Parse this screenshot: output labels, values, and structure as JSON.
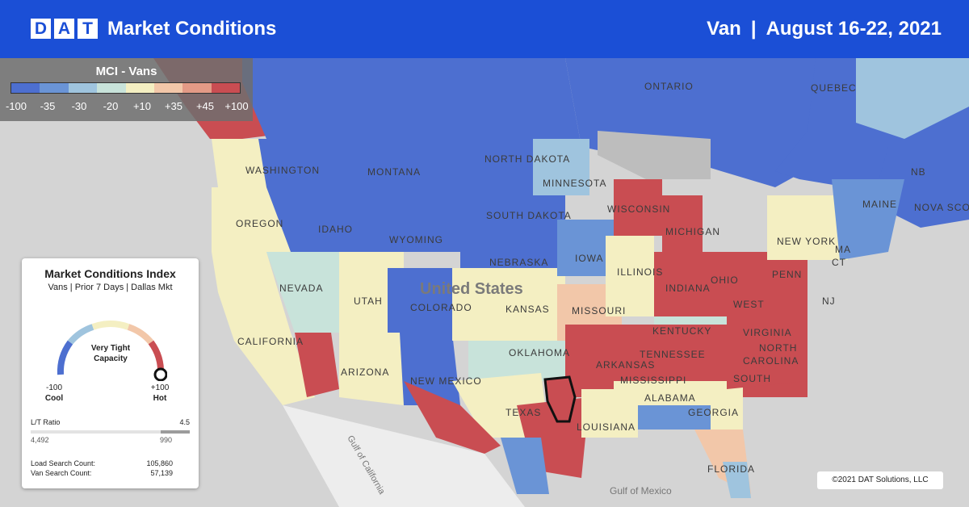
{
  "header": {
    "logo_letters": [
      "D",
      "A",
      "T"
    ],
    "title": "Market Conditions",
    "equipment": "Van",
    "separator": "|",
    "date_range": "August 16-22, 2021"
  },
  "legend": {
    "title": "MCI - Vans",
    "ticks": [
      "-100",
      "-35",
      "-30",
      "-20",
      "+10",
      "+35",
      "+45",
      "+100"
    ],
    "colors": [
      "#4d6fd0",
      "#6a94d6",
      "#9fc4de",
      "#c8e3da",
      "#f4efc2",
      "#f2c7a9",
      "#e49a86",
      "#c94d52"
    ]
  },
  "card": {
    "title": "Market Conditions Index",
    "subtitle": "Vans | Prior 7 Days | Dallas Mkt",
    "gauge_label_line1": "Very Tight",
    "gauge_label_line2": "Capacity",
    "gauge_value": 100,
    "min_value": "-100",
    "min_label": "Cool",
    "max_value": "+100",
    "max_label": "Hot",
    "lt_ratio_label": "L/T Ratio",
    "lt_ratio_value": "4.5",
    "loads": "4,492",
    "trucks": "990",
    "load_search_label": "Load Search Count:",
    "load_search_value": "105,860",
    "van_search_label": "Van Search Count:",
    "van_search_value": "57,139"
  },
  "map": {
    "country_label": "United States",
    "water_labels": [
      "Gulf of California",
      "Gulf of Mexico"
    ],
    "region_labels": [
      "WASHINGTON",
      "MONTANA",
      "NORTH DAKOTA",
      "MINNESOTA",
      "OREGON",
      "IDAHO",
      "WYOMING",
      "SOUTH DAKOTA",
      "NEBRASKA",
      "IOWA",
      "WISCONSIN",
      "MICHIGAN",
      "NEVADA",
      "UTAH",
      "COLORADO",
      "KANSAS",
      "MISSOURI",
      "ILLINOIS",
      "INDIANA",
      "OHIO",
      "PENN",
      "NEW YORK",
      "CALIFORNIA",
      "ARIZONA",
      "NEW MEXICO",
      "OKLAHOMA",
      "ARKANSAS",
      "TENNESSEE",
      "KENTUCKY",
      "WEST",
      "VIRGINIA",
      "NORTH",
      "CAROLINA",
      "SOUTH",
      "MISSISSIPPI",
      "ALABAMA",
      "GEORGIA",
      "TEXAS",
      "LOUISIANA",
      "FLORIDA",
      "ONTARIO",
      "QUEBEC",
      "MAINE",
      "NB",
      "NOVA SCO",
      "NJ",
      "MA",
      "CT"
    ]
  },
  "copyright": "©2021 DAT Solutions, LLC"
}
